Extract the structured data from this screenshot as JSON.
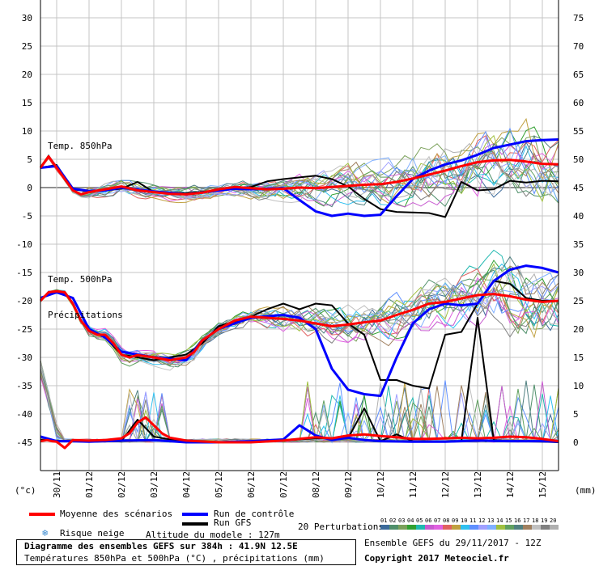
{
  "chart_data": {
    "type": "line",
    "left_axis_unit": "(°c)",
    "right_axis_unit": "(mm)",
    "left_ticks": [
      30,
      25,
      20,
      15,
      10,
      5,
      0,
      -5,
      -10,
      -15,
      -20,
      -25,
      -30,
      -35,
      -40,
      -45
    ],
    "right_ticks": [
      75,
      70,
      65,
      60,
      55,
      50,
      45,
      40,
      35,
      30,
      25,
      20,
      15,
      10,
      5,
      0
    ],
    "ylim_left": [
      -45,
      30
    ],
    "ylim_right": [
      0,
      75
    ],
    "x_start_day": 29.5,
    "x_end_day": 45.5,
    "x_ticks": [
      {
        "label": "30/11",
        "day": 30
      },
      {
        "label": "01/12",
        "day": 31
      },
      {
        "label": "02/12",
        "day": 32
      },
      {
        "label": "03/12",
        "day": 33
      },
      {
        "label": "04/12",
        "day": 34
      },
      {
        "label": "05/12",
        "day": 35
      },
      {
        "label": "06/12",
        "day": 36
      },
      {
        "label": "07/12",
        "day": 37
      },
      {
        "label": "08/12",
        "day": 38
      },
      {
        "label": "09/12",
        "day": 39
      },
      {
        "label": "10/12",
        "day": 40
      },
      {
        "label": "11/12",
        "day": 41
      },
      {
        "label": "12/12",
        "day": 42
      },
      {
        "label": "13/12",
        "day": 43
      },
      {
        "label": "14/12",
        "day": 44
      },
      {
        "label": "15/12",
        "day": 45
      }
    ],
    "annotations": {
      "t850": "Temp. 850hPa",
      "t500": "Temp. 500hPa",
      "precip": "Précipitations"
    },
    "series": [
      {
        "name": "Moyenne des scénarios",
        "panel": "t850",
        "color": "#ff0000",
        "days": [
          29.5,
          29.75,
          30,
          30.25,
          30.5,
          30.75,
          31,
          31.5,
          32,
          32.5,
          33,
          33.5,
          34,
          34.5,
          35,
          35.5,
          36,
          36.5,
          37,
          37.5,
          38,
          38.5,
          39,
          39.5,
          40,
          40.5,
          41,
          41.5,
          42,
          42.5,
          43,
          43.5,
          44,
          44.5,
          45,
          45.5
        ],
        "values": [
          3.5,
          5.5,
          3.5,
          1.5,
          -0.5,
          -1.2,
          -0.8,
          -0.3,
          0.2,
          -0.5,
          -0.8,
          -1.1,
          -1.2,
          -0.9,
          -0.3,
          0.1,
          -0.1,
          -0.3,
          -0.2,
          0,
          -0.1,
          0.1,
          0.3,
          0.5,
          0.6,
          1,
          1.6,
          2.3,
          3,
          3.8,
          4.5,
          4.8,
          4.9,
          4.6,
          4.2,
          4.1
        ]
      },
      {
        "name": "Run de contrôle",
        "panel": "t850",
        "color": "#0000ff",
        "days": [
          29.5,
          30,
          30.5,
          31,
          31.5,
          32,
          33,
          34,
          35,
          35.5,
          36,
          37,
          37.5,
          38,
          38.5,
          39,
          39.5,
          40,
          40.5,
          41,
          41.5,
          42,
          42.5,
          43,
          43.5,
          44,
          44.5,
          45,
          45.5
        ],
        "values": [
          3.5,
          3.8,
          -0.2,
          -0.6,
          -0.5,
          0,
          -0.7,
          -1.2,
          -0.5,
          -0.2,
          -0.3,
          -0.1,
          -2.2,
          -4.2,
          -5,
          -4.6,
          -5,
          -4.8,
          -1.5,
          1.5,
          3,
          4.1,
          4.8,
          5.8,
          7,
          7.6,
          8.2,
          8.4,
          8.5
        ]
      },
      {
        "name": "Run GFS",
        "panel": "t850",
        "color": "#000000",
        "days": [
          29.5,
          30,
          30.5,
          31,
          31.5,
          32,
          32.5,
          33,
          34,
          35,
          36,
          36.5,
          37,
          37.5,
          38,
          38.5,
          39,
          39.5,
          40,
          40.5,
          41,
          41.5,
          42,
          42.5,
          43,
          43.5,
          44,
          44.5,
          45,
          45.5
        ],
        "values": [
          3.5,
          4,
          -0.3,
          -0.7,
          -0.5,
          -0.2,
          1,
          -0.8,
          -1,
          -0.5,
          0.1,
          1.1,
          1.5,
          1.8,
          2.1,
          1.5,
          0.2,
          -2,
          -3.8,
          -4.3,
          -4.4,
          -4.5,
          -5.2,
          1,
          -0.5,
          -0.3,
          1.2,
          0.9,
          1.2,
          1.1
        ]
      },
      {
        "name": "Moyenne des scénarios",
        "panel": "t500",
        "color": "#ff0000",
        "days": [
          29.5,
          29.75,
          30,
          30.25,
          30.5,
          30.75,
          31,
          31.25,
          31.5,
          31.75,
          32,
          32.25,
          32.5,
          33,
          33.5,
          34,
          34.25,
          34.5,
          35,
          35.5,
          36,
          36.5,
          37,
          37.5,
          38,
          38.5,
          39,
          39.5,
          40,
          40.5,
          41,
          41.5,
          42,
          42.5,
          43,
          43.5,
          44,
          44.5,
          45,
          45.5
        ],
        "values": [
          -20,
          -18.5,
          -18.3,
          -18.5,
          -20.5,
          -23.5,
          -25.3,
          -26,
          -26,
          -27.5,
          -29.5,
          -30,
          -29.6,
          -30,
          -30.5,
          -30,
          -29,
          -27,
          -25,
          -23.5,
          -22.8,
          -23,
          -23.2,
          -23.5,
          -24,
          -24.5,
          -24.2,
          -23.8,
          -23.5,
          -22.5,
          -21.6,
          -20.5,
          -20.2,
          -19.6,
          -19,
          -18.8,
          -19.2,
          -19.8,
          -20.2,
          -20
        ]
      },
      {
        "name": "Run de contrôle",
        "panel": "t500",
        "color": "#0000ff",
        "days": [
          29.5,
          30,
          30.5,
          31,
          31.5,
          32,
          33,
          34,
          34.5,
          35,
          36,
          37,
          37.5,
          38,
          38.5,
          39,
          39.5,
          40,
          40.5,
          41,
          41.5,
          42,
          42.5,
          43,
          43.5,
          44,
          44.5,
          45,
          45.5
        ],
        "values": [
          -19.5,
          -18.5,
          -19.5,
          -25,
          -26.5,
          -29,
          -30,
          -30.5,
          -27,
          -25,
          -23,
          -22.5,
          -23,
          -25,
          -32,
          -35.7,
          -36.5,
          -36.8,
          -30,
          -24,
          -21.5,
          -20.5,
          -20.8,
          -20.5,
          -16.5,
          -14.5,
          -13.8,
          -14.2,
          -15
        ]
      },
      {
        "name": "Run GFS",
        "panel": "t500",
        "color": "#000000",
        "days": [
          29.5,
          30,
          30.5,
          31,
          31.5,
          32,
          33,
          34,
          34.5,
          35,
          36,
          36.5,
          37,
          37.5,
          38,
          38.5,
          39,
          39.5,
          40,
          40.5,
          41,
          41.5,
          42,
          42.5,
          43,
          43.5,
          44,
          44.5,
          45,
          45.5
        ],
        "values": [
          -19.5,
          -18.5,
          -19.5,
          -25,
          -26.5,
          -29.5,
          -30.5,
          -29.5,
          -27.5,
          -24.5,
          -22.8,
          -21.5,
          -20.5,
          -21.5,
          -20.5,
          -20.8,
          -24,
          -26,
          -34,
          -34,
          -35,
          -35.5,
          -26,
          -25.5,
          -20.5,
          -16.5,
          -17,
          -19.5,
          -20,
          -20
        ]
      },
      {
        "name": "Moyenne des scénarios",
        "panel": "precip",
        "color": "#ff0000",
        "days": [
          29.5,
          29.7,
          29.85,
          30,
          30.25,
          30.5,
          31,
          31.5,
          32,
          32.25,
          32.5,
          32.75,
          33,
          33.25,
          33.5,
          34,
          35,
          36,
          37,
          37.5,
          38,
          38.5,
          39,
          39.5,
          40,
          40.5,
          41,
          41.5,
          42,
          42.5,
          43,
          43.5,
          44,
          44.5,
          45,
          45.5
        ],
        "values": [
          0.2,
          0.4,
          0.2,
          0.1,
          -1,
          0.4,
          0.3,
          0.4,
          0.7,
          1.6,
          3.5,
          4.4,
          3,
          1.6,
          0.8,
          0.3,
          0,
          0,
          0.3,
          0.6,
          0.9,
          0.7,
          1.2,
          1.4,
          1.1,
          0.9,
          0.6,
          0.6,
          0.7,
          0.8,
          0.7,
          0.8,
          1,
          0.9,
          0.6,
          0.2
        ]
      },
      {
        "name": "Run de contrôle",
        "panel": "precip",
        "color": "#0000ff",
        "days": [
          29.5,
          30,
          30.5,
          31,
          32,
          33,
          34,
          35,
          36,
          37,
          37.5,
          38,
          38.5,
          39,
          39.5,
          40,
          41,
          42,
          43,
          44,
          45,
          45.5
        ],
        "values": [
          1,
          0.2,
          0.2,
          0.1,
          0.3,
          0.4,
          0,
          0,
          0.2,
          0.5,
          3,
          1.2,
          0.4,
          0.8,
          0.4,
          0.2,
          0.1,
          0.1,
          0.3,
          0.2,
          0.2,
          0.1
        ]
      },
      {
        "name": "Run GFS",
        "panel": "precip",
        "color": "#000000",
        "days": [
          29.5,
          30,
          30.5,
          31,
          32,
          32.5,
          33,
          34,
          35,
          36,
          37,
          38,
          39,
          39.5,
          40,
          40.5,
          41,
          42,
          42.5,
          43,
          43.5,
          44,
          45,
          45.5
        ],
        "values": [
          0.5,
          0.3,
          0.2,
          0.1,
          0.2,
          4,
          1,
          0,
          0,
          0.1,
          0.3,
          0.7,
          0.7,
          6,
          0.2,
          1.4,
          0.2,
          0.1,
          0.2,
          22,
          0.4,
          0.2,
          0.1,
          0
        ]
      }
    ]
  },
  "legend": {
    "mean": "Moyenne des scénarios",
    "control": "Run de contrôle",
    "gfs": "Run GFS",
    "snow_icon": "snowflake-icon",
    "snow": "Risque neige",
    "altitude": "Altitude du modele : 127m",
    "perturbations": "20 Perturbations",
    "perturbation_numbers": [
      "01",
      "02",
      "03",
      "04",
      "05",
      "06",
      "07",
      "08",
      "09",
      "10",
      "11",
      "12",
      "13",
      "14",
      "15",
      "16",
      "17",
      "18",
      "19",
      "20"
    ],
    "perturbation_colors": [
      "#3b6a9a",
      "#4f8f6a",
      "#7aa05a",
      "#30a030",
      "#20b8b0",
      "#c85ad0",
      "#e060e0",
      "#e06060",
      "#c0a040",
      "#30c0f0",
      "#6090ff",
      "#a0a0ff",
      "#80b0ff",
      "#a0c040",
      "#60a060",
      "#508080",
      "#a08060",
      "#c0c0c0",
      "#808080",
      "#b0b0b0"
    ]
  },
  "footer": {
    "title": "Diagramme des ensembles GEFS sur 384h : 41.9N 12.5E",
    "subtitle": "Températures 850hPa et 500hPa (°C) , précipitations (mm)",
    "ensemble": "Ensemble GEFS du 29/11/2017 - 12Z",
    "copyright": "Copyright 2017 Meteociel.fr"
  }
}
